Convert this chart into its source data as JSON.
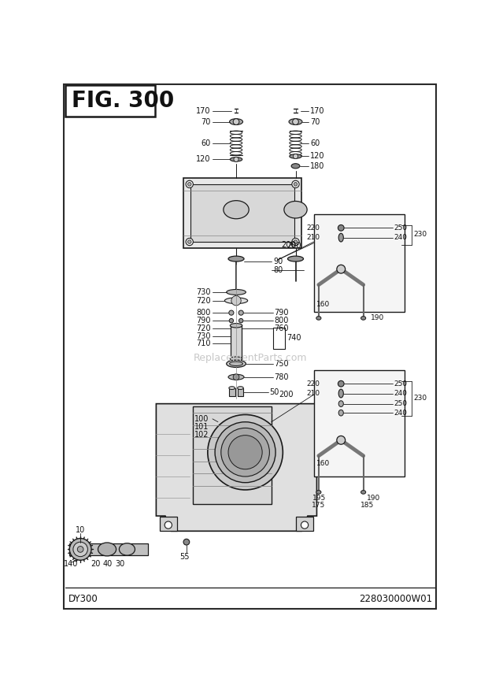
{
  "title": "FIG. 300",
  "bottom_left": "DY300",
  "bottom_right": "228030000W01",
  "bg_color": "#ffffff",
  "border_color": "#2a2a2a",
  "line_color": "#1a1a1a",
  "text_color": "#111111",
  "watermark": "ReplacementParts.com",
  "gray_part": "#888888",
  "light_gray": "#cccccc",
  "mid_gray": "#aaaaaa"
}
